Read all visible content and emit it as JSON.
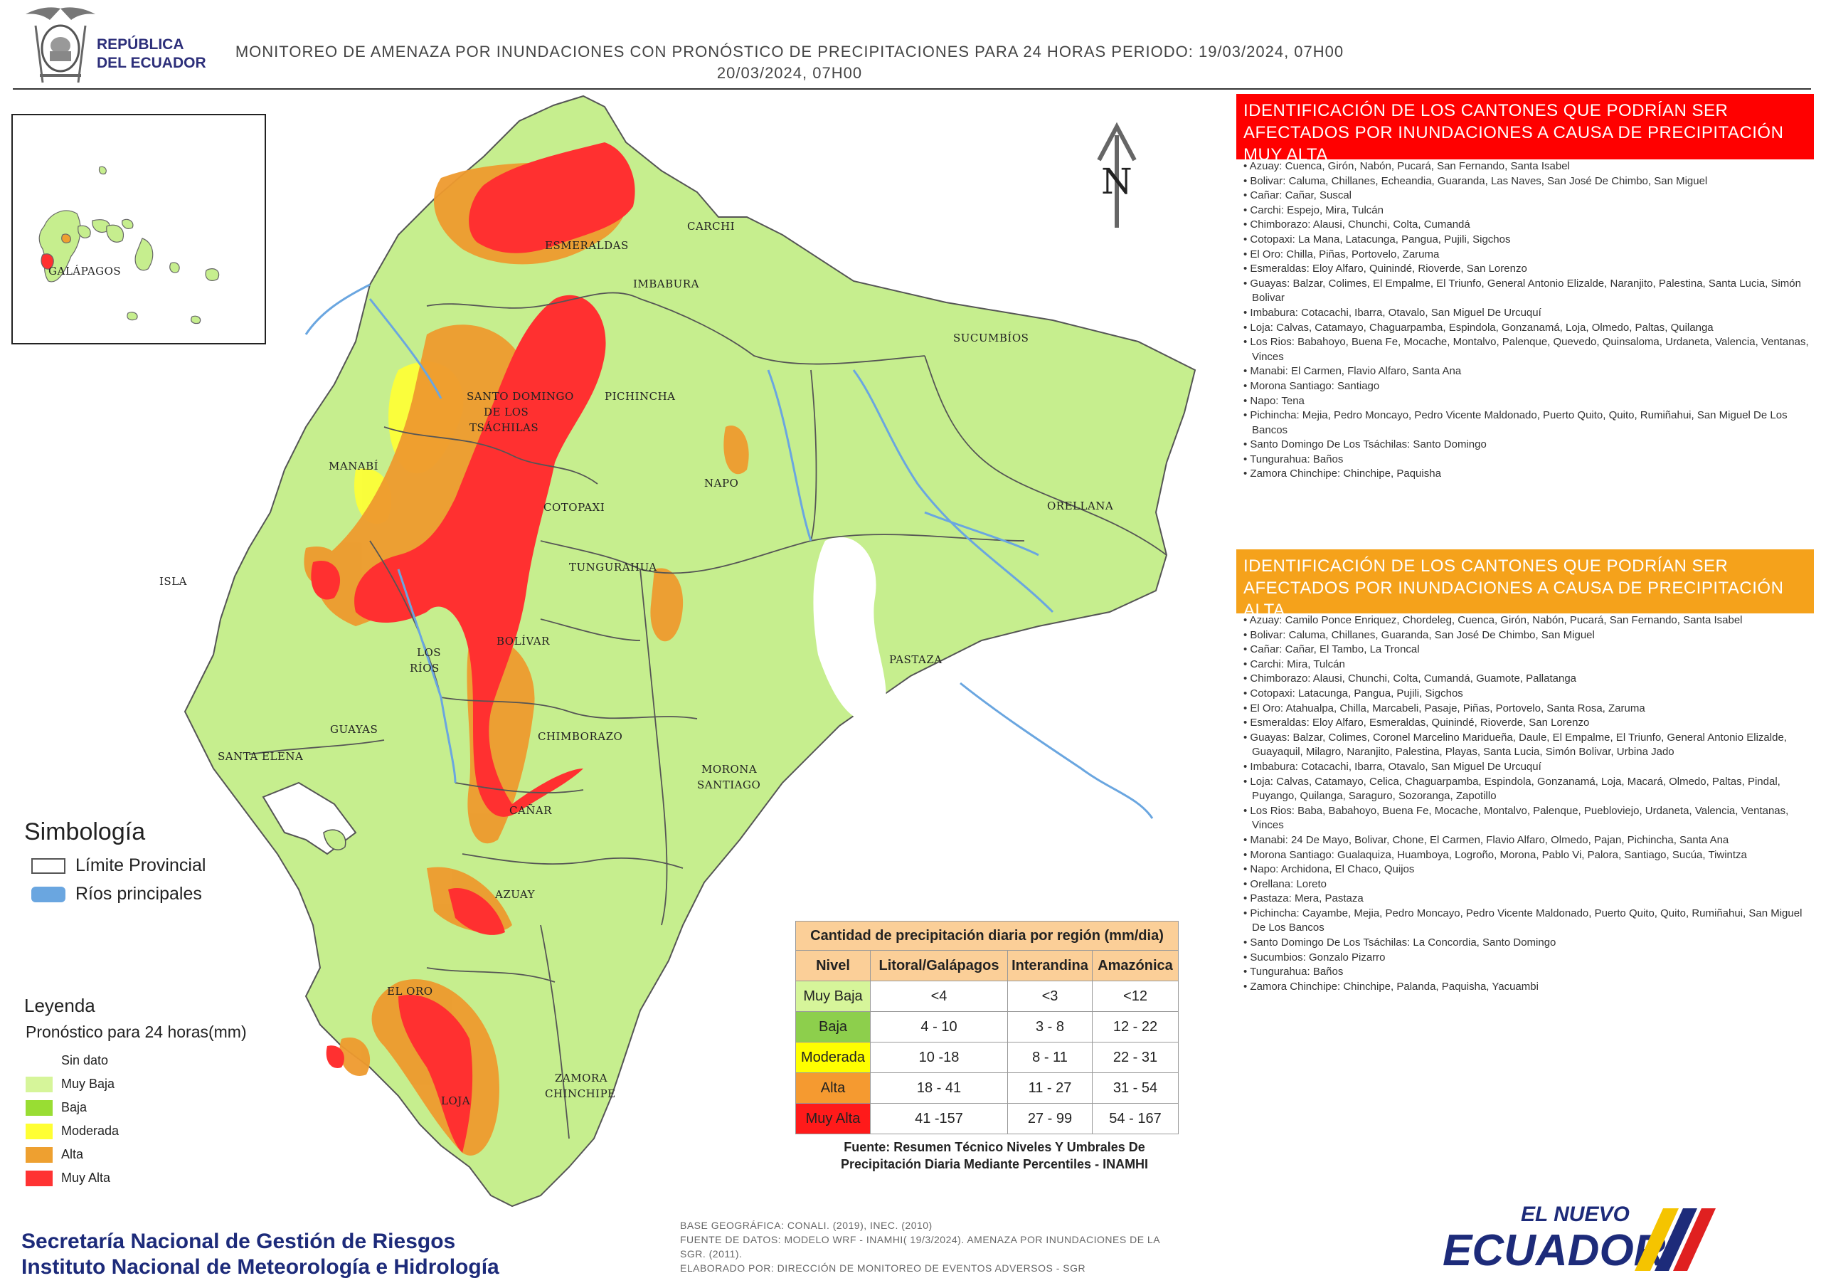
{
  "header": {
    "country_line1": "REPÚBLICA",
    "country_line2": "DEL ECUADOR",
    "title_line1": "MONITOREO DE AMENAZA POR INUNDACIONES  CON PRONÓSTICO DE  PRECIPITACIONES PARA 24 HORAS  PERIODO: 19/03/2024, 07H00",
    "title_line2": "20/03/2024, 07H00"
  },
  "map": {
    "inset_label": "GALÁPAGOS",
    "north_label": "N",
    "province_labels": [
      "ESMERALDAS",
      "CARCHI",
      "IMBABURA",
      "SUCUMBÍOS",
      "SANTO DOMINGO",
      "DE LOS",
      "TSÁCHILAS",
      "PICHINCHA",
      "MANABÍ",
      "NAPO",
      "ORELLANA",
      "COTOPAXI",
      "TUNGURAHUA",
      "ISLA",
      "BOLÍVAR",
      "LOS",
      "RÍOS",
      "PASTAZA",
      "CHIMBORAZO",
      "GUAYAS",
      "SANTA ELENA",
      "MORONA",
      "SANTIAGO",
      "CAÑAR",
      "AZUAY",
      "EL ORO",
      "ZAMORA",
      "CHINCHIPE",
      "LOJA"
    ],
    "colors": {
      "sin_dato": "#e6f5c8",
      "muy_baja": "#c6ee8e",
      "baja": "#93d93c",
      "moderada": "#ffff33",
      "alta": "#ee9a2e",
      "muy_alta": "#ff3030",
      "river": "#6aa6e0",
      "border": "#555555",
      "white_area": "#ffffff"
    }
  },
  "panel_muy_alta": {
    "heading": "IDENTIFICACIÓN DE LOS CANTONES QUE PODRÍAN SER AFECTADOS POR INUNDACIONES  A CAUSA DE PRECIPITACIÓN MUY ALTA",
    "color": "#ff0000",
    "items": [
      "Azuay: Cuenca, Girón, Nabón, Pucará, San Fernando, Santa Isabel",
      "Bolivar: Caluma, Chillanes, Echeandia, Guaranda, Las Naves, San José De Chimbo, San Miguel",
      "Cañar: Cañar, Suscal",
      "Carchi: Espejo, Mira, Tulcán",
      "Chimborazo: Alausi, Chunchi, Colta, Cumandá",
      "Cotopaxi: La Mana, Latacunga, Pangua, Pujili, Sigchos",
      "El Oro: Chilla, Piñas, Portovelo, Zaruma",
      "Esmeraldas: Eloy Alfaro, Quinindé, Rioverde, San Lorenzo",
      "Guayas: Balzar, Colimes, El Empalme, El Triunfo, General Antonio Elizalde, Naranjito, Palestina, Santa Lucia, Simón Bolivar",
      "Imbabura: Cotacachi, Ibarra, Otavalo, San Miguel De Urcuquí",
      "Loja: Calvas, Catamayo, Chaguarpamba, Espindola, Gonzanamá, Loja, Olmedo, Paltas, Quilanga",
      "Los Rios: Babahoyo, Buena Fe, Mocache, Montalvo, Palenque, Quevedo, Quinsaloma, Urdaneta, Valencia, Ventanas, Vinces",
      "Manabi: El Carmen, Flavio Alfaro, Santa Ana",
      "Morona Santiago: Santiago",
      "Napo: Tena",
      "Pichincha: Mejia, Pedro Moncayo, Pedro Vicente Maldonado, Puerto Quito, Quito, Rumiñahui, San Miguel De Los Bancos",
      "Santo Domingo De Los Tsáchilas: Santo Domingo",
      "Tungurahua: Baños",
      "Zamora Chinchipe: Chinchipe, Paquisha"
    ]
  },
  "panel_alta": {
    "heading": "IDENTIFICACIÓN DE LOS CANTONES QUE  PODRÍAN SER AFECTADOS POR INUNDACIONES  A CAUSA DE PRECIPITACIÓN  ALTA",
    "color": "#f5a21b",
    "items": [
      "Azuay: Camilo Ponce Enriquez, Chordeleg, Cuenca, Girón, Nabón, Pucará, San Fernando, Santa Isabel",
      "Bolivar: Caluma, Chillanes, Guaranda, San José De Chimbo, San Miguel",
      "Cañar: Cañar, El Tambo, La Troncal",
      "Carchi: Mira, Tulcán",
      "Chimborazo: Alausi, Chunchi, Colta, Cumandá, Guamote, Pallatanga",
      "Cotopaxi: Latacunga, Pangua, Pujili, Sigchos",
      "El Oro: Atahualpa, Chilla, Marcabeli, Pasaje, Piñas, Portovelo, Santa Rosa, Zaruma",
      "Esmeraldas: Eloy Alfaro, Esmeraldas, Quinindé, Rioverde, San Lorenzo",
      "Guayas: Balzar, Colimes, Coronel Marcelino Maridueña, Daule, El Empalme, El Triunfo, General Antonio Elizalde, Guayaquil, Milagro, Naranjito, Palestina, Playas, Santa Lucia, Simón Bolivar, Urbina Jado",
      "Imbabura: Cotacachi, Ibarra, Otavalo, San Miguel De Urcuquí",
      "Loja: Calvas, Catamayo, Celica, Chaguarpamba, Espindola, Gonzanamá, Loja, Macará, Olmedo, Paltas, Pindal, Puyango, Quilanga, Saraguro, Sozoranga, Zapotillo",
      "Los Rios: Baba, Babahoyo, Buena Fe, Mocache, Montalvo, Palenque, Puebloviejo, Urdaneta, Valencia, Ventanas, Vinces",
      "Manabi: 24 De Mayo, Bolivar, Chone, El Carmen, Flavio Alfaro, Olmedo, Pajan, Pichincha, Santa Ana",
      "Morona Santiago: Gualaquiza, Huamboya, Logroño, Morona, Pablo Vi, Palora, Santiago, Sucúa, Tiwintza",
      "Napo: Archidona, El Chaco, Quijos",
      "Orellana: Loreto",
      "Pastaza: Mera, Pastaza",
      "Pichincha: Cayambe, Mejia, Pedro Moncayo, Pedro Vicente Maldonado, Puerto Quito, Quito, Rumiñahui, San Miguel De Los Bancos",
      "Santo Domingo De Los Tsáchilas: La Concordia, Santo Domingo",
      "Sucumbios: Gonzalo Pizarro",
      "Tungurahua: Baños",
      "Zamora Chinchipe: Chinchipe, Palanda, Paquisha, Yacuambi"
    ]
  },
  "simbologia": {
    "title": "Simbología",
    "items": [
      {
        "label": "Límite Provincial",
        "color": "#ffffff"
      },
      {
        "label": "Ríos principales",
        "color": "#6aa6e0"
      }
    ]
  },
  "leyenda": {
    "title": "Leyenda",
    "subtitle": "Pronóstico para 24 horas(mm)",
    "items": [
      {
        "label": "Sin dato",
        "color": "#ffffff"
      },
      {
        "label": "Muy Baja",
        "color": "#d6f59a"
      },
      {
        "label": "Baja",
        "color": "#99dd33"
      },
      {
        "label": "Moderada",
        "color": "#ffff33"
      },
      {
        "label": "Alta",
        "color": "#eea030"
      },
      {
        "label": "Muy Alta",
        "color": "#ff3333"
      }
    ]
  },
  "precip_table": {
    "title": "Cantidad de precipitación diaria por región (mm/dia)",
    "headers": [
      "Nivel",
      "Litoral/Galápagos",
      "Interandina",
      "Amazónica"
    ],
    "rows": [
      {
        "nivel": "Muy Baja",
        "color": "#d6f59a",
        "litoral": "<4",
        "interandina": "<3",
        "amazonica": "<12"
      },
      {
        "nivel": "Baja",
        "color": "#8dcf4c",
        "litoral": "4 - 10",
        "interandina": "3 - 8",
        "amazonica": "12 - 22"
      },
      {
        "nivel": "Moderada",
        "color": "#ffff00",
        "litoral": "10 -18",
        "interandina": "8 - 11",
        "amazonica": "22 - 31"
      },
      {
        "nivel": "Alta",
        "color": "#f59a30",
        "litoral": "18 - 41",
        "interandina": "11 - 27",
        "amazonica": "31 - 54"
      },
      {
        "nivel": "Muy Alta",
        "color": "#ff1a1a",
        "litoral": "41 -157",
        "interandina": "27 - 99",
        "amazonica": "54 - 167"
      }
    ],
    "source_line1": "Fuente: Resumen Técnico Niveles Y Umbrales De",
    "source_line2": "Precipitación Diaria Mediante Percentiles - INAMHI"
  },
  "footer": {
    "org_line1": "Secretaría Nacional de Gestión de Riesgos",
    "org_line2": "Instituto Nacional de Meteorología e Hidrología",
    "base_line1": "BASE GEOGRÁFICA: CONALI. (2019), INEC. (2010)",
    "base_line2": "FUENTE DE DATOS: MODELO WRF - INAMHI( 19/3/2024).  AMENAZA POR INUNDACIONES DE LA",
    "base_line3": "SGR. (2011).",
    "base_line4": "ELABORADO POR: DIRECCIÓN DE MONITOREO DE EVENTOS ADVERSOS - SGR",
    "brand_small": "EL NUEVO",
    "brand_big": "ECUADOR"
  }
}
